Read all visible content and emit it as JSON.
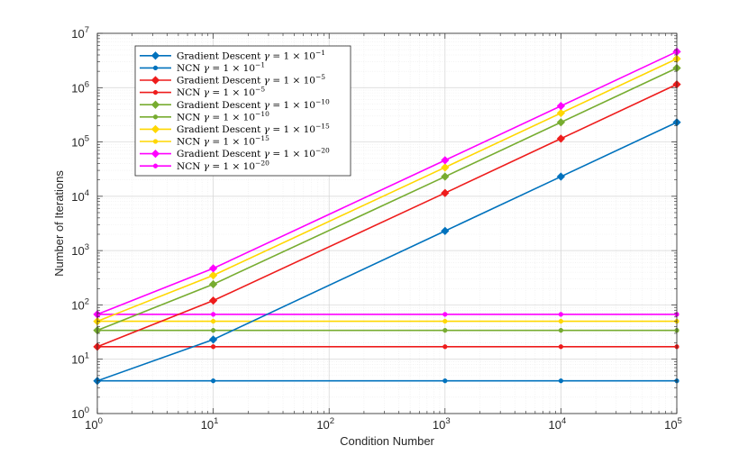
{
  "chart_data": {
    "type": "line",
    "xscale": "log",
    "yscale": "log",
    "xlim": [
      1,
      100000
    ],
    "ylim": [
      1,
      10000000
    ],
    "xlabel": "Condition Number",
    "ylabel": "Number of Iterations",
    "grid": true,
    "minor_grid": true,
    "legend_location": "top-left",
    "x": [
      1,
      10,
      1000,
      10000,
      100000
    ],
    "x_tick_labels": [
      {
        "value": 1,
        "base": "10",
        "exp": "0"
      },
      {
        "value": 10,
        "base": "10",
        "exp": "1"
      },
      {
        "value": 100,
        "base": "10",
        "exp": "2"
      },
      {
        "value": 1000,
        "base": "10",
        "exp": "3"
      },
      {
        "value": 10000,
        "base": "10",
        "exp": "4"
      },
      {
        "value": 100000,
        "base": "10",
        "exp": "5"
      }
    ],
    "y_tick_labels": [
      {
        "value": 1,
        "base": "10",
        "exp": "0"
      },
      {
        "value": 10,
        "base": "10",
        "exp": "1"
      },
      {
        "value": 100,
        "base": "10",
        "exp": "2"
      },
      {
        "value": 1000,
        "base": "10",
        "exp": "3"
      },
      {
        "value": 10000,
        "base": "10",
        "exp": "4"
      },
      {
        "value": 100000,
        "base": "10",
        "exp": "5"
      },
      {
        "value": 1000000,
        "base": "10",
        "exp": "6"
      },
      {
        "value": 10000000,
        "base": "10",
        "exp": "7"
      }
    ],
    "series": [
      {
        "name": "Gradient Descent γ = 1 × 10^−1",
        "method": "Gradient Descent",
        "gamma_exp": "−1",
        "marker": "diamond",
        "color": "#0072BD",
        "values": [
          4,
          23,
          2300,
          23000,
          230000
        ]
      },
      {
        "name": "NCN γ = 1 × 10^−1",
        "method": "NCN",
        "gamma_exp": "−1",
        "marker": "circle",
        "color": "#0072BD",
        "values": [
          4,
          4,
          4,
          4,
          4
        ]
      },
      {
        "name": "Gradient Descent γ = 1 × 10^−5",
        "method": "Gradient Descent",
        "gamma_exp": "−5",
        "marker": "diamond",
        "color": "#EE1C1C",
        "values": [
          17,
          120,
          11500,
          115000,
          1150000
        ]
      },
      {
        "name": "NCN γ = 1 × 10^−5",
        "method": "NCN",
        "gamma_exp": "−5",
        "marker": "circle",
        "color": "#EE1C1C",
        "values": [
          17,
          17,
          17,
          17,
          17
        ]
      },
      {
        "name": "Gradient Descent γ = 1 × 10^−10",
        "method": "Gradient Descent",
        "gamma_exp": "−10",
        "marker": "diamond",
        "color": "#77AC30",
        "values": [
          34,
          240,
          23000,
          230000,
          2300000
        ]
      },
      {
        "name": "NCN γ = 1 × 10^−10",
        "method": "NCN",
        "gamma_exp": "−10",
        "marker": "circle",
        "color": "#77AC30",
        "values": [
          34,
          34,
          34,
          34,
          34
        ]
      },
      {
        "name": "Gradient Descent γ = 1 × 10^−15",
        "method": "Gradient Descent",
        "gamma_exp": "−15",
        "marker": "diamond",
        "color": "#FFD700",
        "values": [
          50,
          350,
          34000,
          340000,
          3400000
        ]
      },
      {
        "name": "NCN γ = 1 × 10^−15",
        "method": "NCN",
        "gamma_exp": "−15",
        "marker": "circle",
        "color": "#FFD700",
        "values": [
          50,
          50,
          50,
          50,
          50
        ]
      },
      {
        "name": "Gradient Descent γ = 1 × 10^−20",
        "method": "Gradient Descent",
        "gamma_exp": "−20",
        "marker": "diamond",
        "color": "#FF00FF",
        "values": [
          67,
          470,
          46000,
          460000,
          4600000
        ]
      },
      {
        "name": "NCN γ = 1 × 10^−20",
        "method": "NCN",
        "gamma_exp": "−20",
        "marker": "circle",
        "color": "#FF00FF",
        "values": [
          67,
          67,
          67,
          67,
          67
        ]
      }
    ]
  }
}
